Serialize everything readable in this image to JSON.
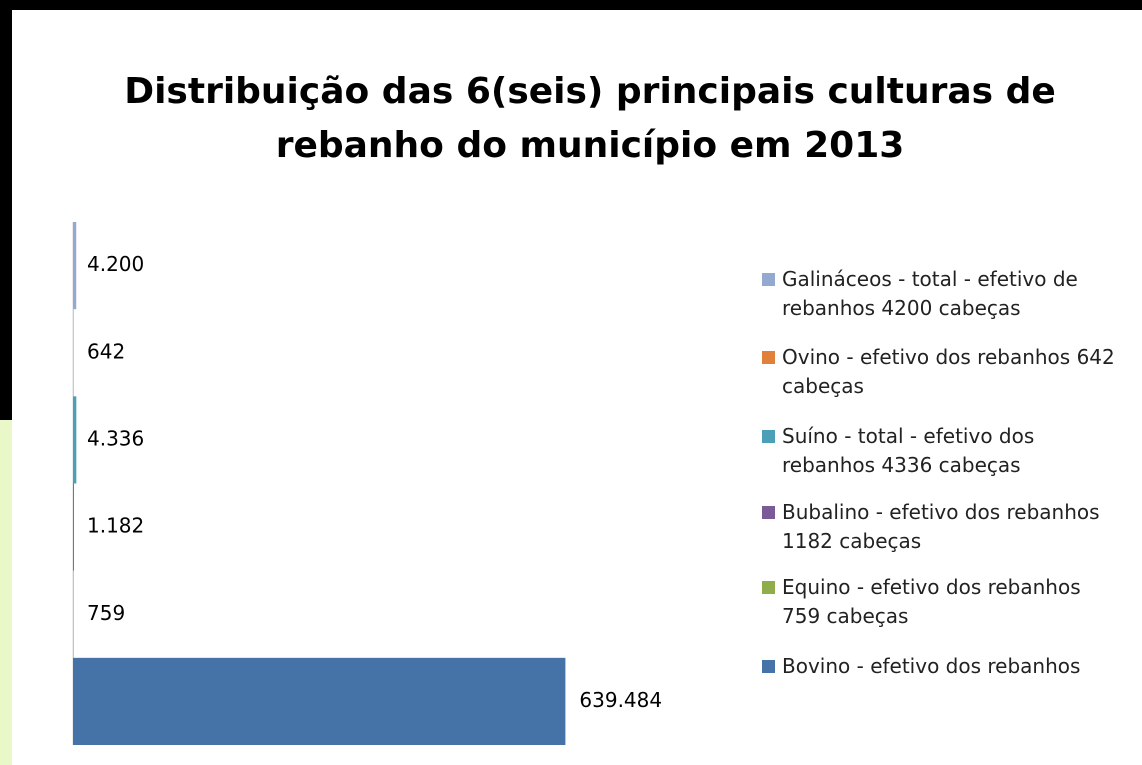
{
  "chart_data": {
    "type": "bar",
    "orientation": "horizontal",
    "title": [
      "Distribuição das 6(seis) principais culturas de",
      "rebanho do município em 2013"
    ],
    "xlim": [
      0,
      800000
    ],
    "legend": "right",
    "series": [
      {
        "name": "Galináceos - total - efetivo de rebanhos 4200 cabeças",
        "color": "#93a9cf",
        "values": [
          4200
        ],
        "value_labels": [
          "4.200"
        ]
      },
      {
        "name": "Ovino - efetivo dos rebanhos 642 cabeças",
        "color": "#e0803a",
        "values": [
          642
        ],
        "value_labels": [
          "642"
        ]
      },
      {
        "name": "Suíno - total - efetivo dos rebanhos 4336 cabeças",
        "color": "#4ba0b8",
        "values": [
          4336
        ],
        "value_labels": [
          "4.336"
        ]
      },
      {
        "name": "Bubalino - efetivo dos rebanhos 1182 cabeças",
        "color": "#7a5a97",
        "values": [
          1182
        ],
        "value_labels": [
          "1.182"
        ]
      },
      {
        "name": "Equino - efetivo dos rebanhos 759 cabeças",
        "color": "#8fae4b",
        "values": [
          759
        ],
        "value_labels": [
          "759"
        ]
      },
      {
        "name": "Bovino - efetivo dos rebanhos",
        "color": "#4572a7",
        "values": [
          639484
        ],
        "value_labels": [
          "639.484"
        ]
      }
    ]
  }
}
